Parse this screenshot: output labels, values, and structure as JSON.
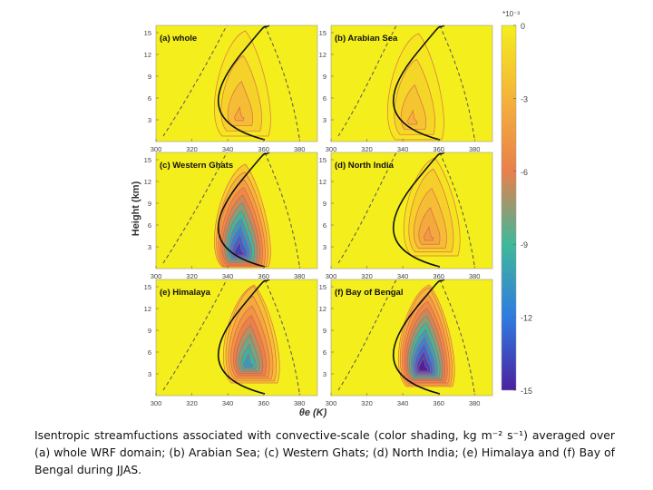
{
  "chart_data": {
    "type": "heatmap",
    "xlabel": "θe (K)",
    "ylabel": "Height (km)",
    "x_ticks": [
      "300",
      "320",
      "340",
      "360",
      "380"
    ],
    "y_ticks": [
      "3",
      "6",
      "9",
      "12",
      "15"
    ],
    "xlim": [
      300,
      390
    ],
    "ylim": [
      0,
      16
    ],
    "colorbar": {
      "exponent_label": "*10⁻³",
      "ticks": [
        "0",
        "-3",
        "-6",
        "-9",
        "-12",
        "-15"
      ],
      "range": [
        -15,
        0
      ],
      "colors": [
        "#f4ee1c",
        "#f5b33a",
        "#e8804b",
        "#3fb89a",
        "#2f7be0",
        "#4a21a0"
      ]
    },
    "panels": [
      {
        "title": "(a) whole",
        "min_value": -3.5,
        "core_theta": 346,
        "core_height": 3.5
      },
      {
        "title": "(b) Arabian Sea",
        "min_value": -3.0,
        "core_theta": 345,
        "core_height": 3.0
      },
      {
        "title": "(c) Western Ghats",
        "min_value": -14.0,
        "core_theta": 346,
        "core_height": 2.5
      },
      {
        "title": "(d) North India",
        "min_value": -4.5,
        "core_theta": 354,
        "core_height": 4.5
      },
      {
        "title": "(e) Himalaya",
        "min_value": -10.5,
        "core_theta": 351,
        "core_height": 4.5
      },
      {
        "title": "(f) Bay of Bengal",
        "min_value": -15.0,
        "core_theta": 351,
        "core_height": 4.0
      }
    ]
  },
  "caption": "Isentropic streamfuctions associated with convective-scale (color shading, kg m⁻² s⁻¹) averaged over (a) whole WRF domain; (b) Arabian Sea; (c) Western Ghats; (d) North India; (e) Himalaya and (f) Bay of Bengal during JJAS."
}
